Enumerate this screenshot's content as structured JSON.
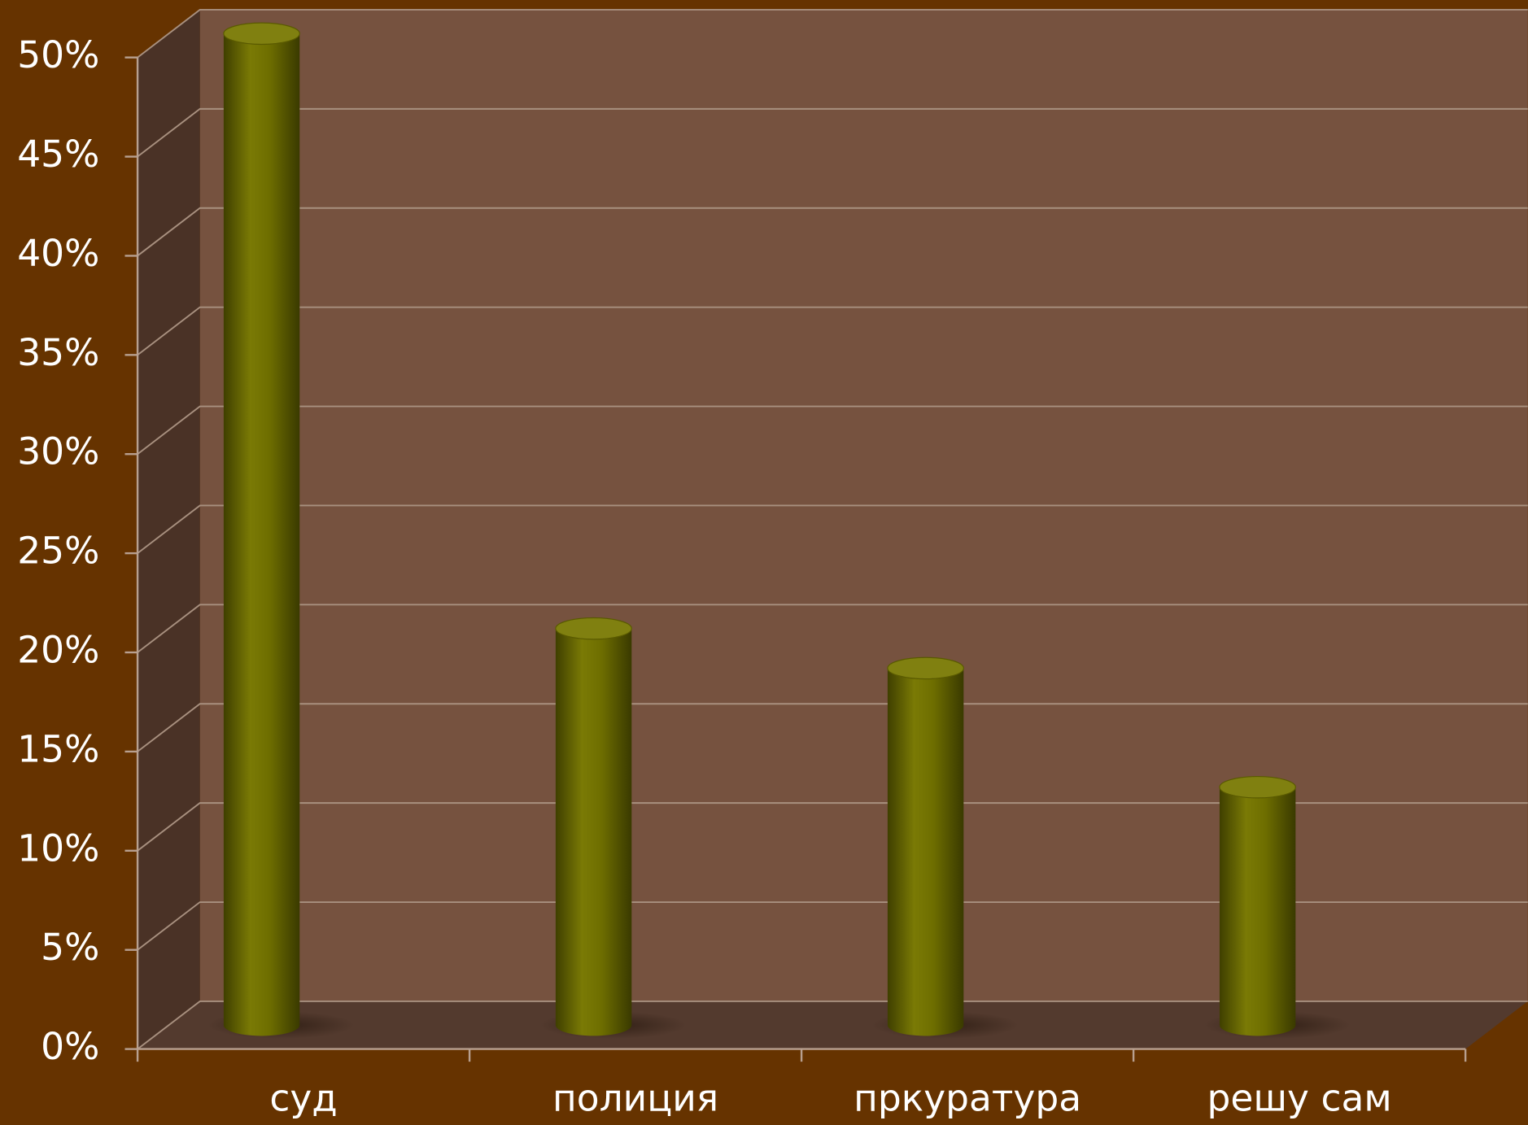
{
  "chart_data": {
    "type": "bar",
    "categories": [
      "суд",
      "полиция",
      "пркуратура",
      "решу сам"
    ],
    "values": [
      50,
      20,
      18,
      12
    ],
    "color": "#6b6b00",
    "ylim": [
      0,
      50
    ],
    "yticks": [
      {
        "value": 0,
        "label": "0%"
      },
      {
        "value": 5,
        "label": "5%"
      },
      {
        "value": 10,
        "label": "10%"
      },
      {
        "value": 15,
        "label": "15%"
      },
      {
        "value": 20,
        "label": "20%"
      },
      {
        "value": 25,
        "label": "25%"
      },
      {
        "value": 30,
        "label": "30%"
      },
      {
        "value": 35,
        "label": "35%"
      },
      {
        "value": 40,
        "label": "40%"
      },
      {
        "value": 45,
        "label": "45%"
      },
      {
        "value": 50,
        "label": "50%"
      }
    ],
    "grid": true
  }
}
